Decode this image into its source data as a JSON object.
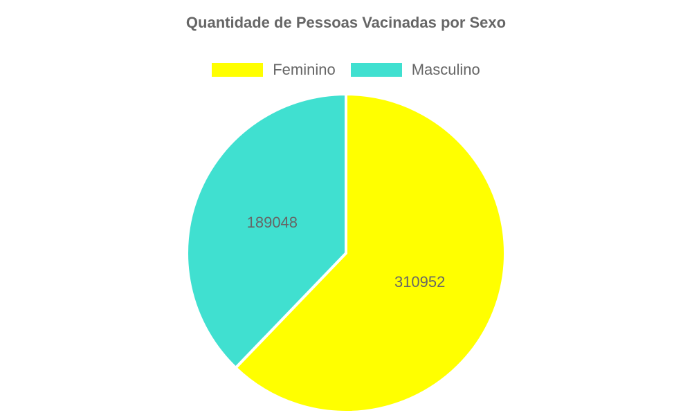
{
  "chart_data": {
    "type": "pie",
    "title": "Quantidade de Pessoas Vacinadas por Sexo",
    "legend_position": "top",
    "slices": [
      {
        "name": "Feminino",
        "value": 310952,
        "label": "310952",
        "color": "#ffff00"
      },
      {
        "name": "Masculino",
        "value": 189048,
        "label": "189048",
        "color": "#40e0d0"
      }
    ]
  }
}
